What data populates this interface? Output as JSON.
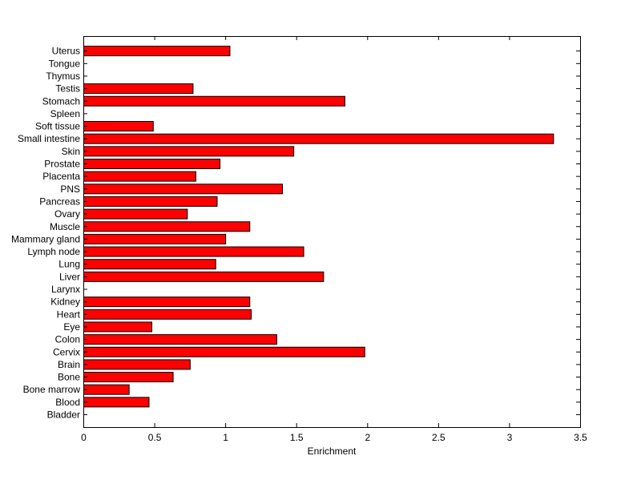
{
  "chart_data": {
    "type": "bar",
    "orientation": "horizontal",
    "title": "",
    "xlabel": "Enrichment",
    "ylabel": "",
    "xlim": [
      0,
      3.5
    ],
    "xticks": [
      0,
      0.5,
      1,
      1.5,
      2,
      2.5,
      3,
      3.5
    ],
    "xtick_labels": [
      "0",
      "0.5",
      "1",
      "1.5",
      "2",
      "2.5",
      "3",
      "3.5"
    ],
    "grid": false,
    "bar_color": "#ff0000",
    "bar_edge_color": "#000000",
    "categories": [
      "Bladder",
      "Blood",
      "Bone marrow",
      "Bone",
      "Brain",
      "Cervix",
      "Colon",
      "Eye",
      "Heart",
      "Kidney",
      "Larynx",
      "Liver",
      "Lung",
      "Lymph node",
      "Mammary gland",
      "Muscle",
      "Ovary",
      "Pancreas",
      "PNS",
      "Placenta",
      "Prostate",
      "Skin",
      "Small intestine",
      "Soft tissue",
      "Spleen",
      "Stomach",
      "Testis",
      "Thymus",
      "Tongue",
      "Uterus"
    ],
    "values": [
      0,
      0.46,
      0.32,
      0.63,
      0.75,
      1.98,
      1.36,
      0.48,
      1.18,
      1.17,
      0,
      1.69,
      0.93,
      1.55,
      1.0,
      1.17,
      0.73,
      0.94,
      1.4,
      0.79,
      0.96,
      1.48,
      3.31,
      0.49,
      0,
      1.84,
      0.77,
      0,
      0,
      1.03
    ]
  }
}
